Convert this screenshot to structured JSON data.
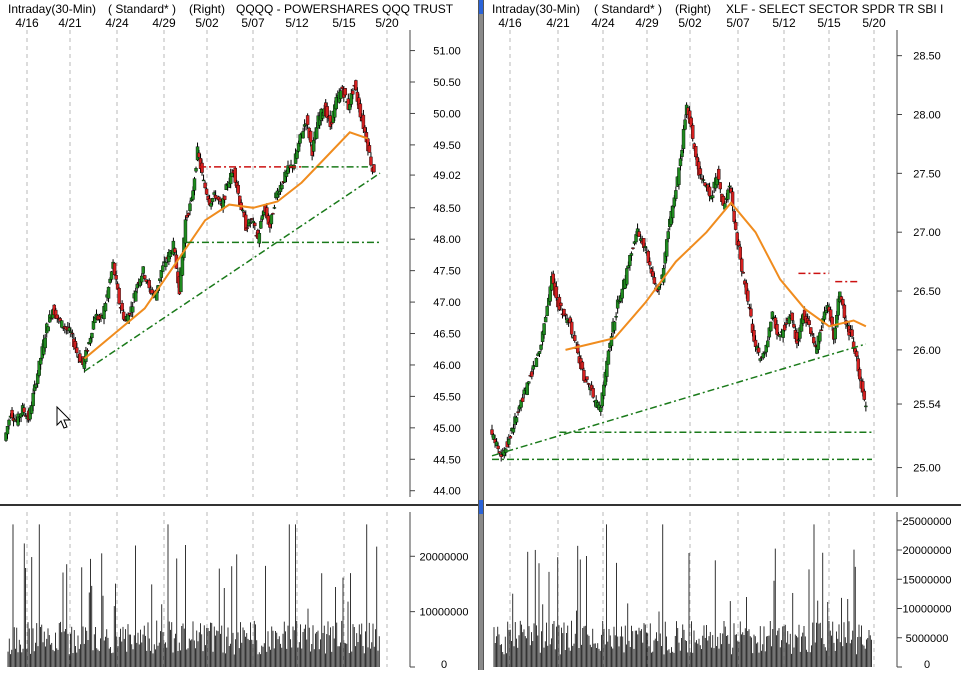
{
  "colors": {
    "up": "#1f8a1f",
    "down": "#d42020",
    "ma": "#f08c1e",
    "trend_green": "#1a7a1a",
    "trend_red": "#cc1111",
    "volume": "#000000",
    "grid": "#b8b8b8"
  },
  "chart_data": [
    {
      "type": "candlestick",
      "title": "QQQQ - POWERSHARES QQQ TRUST",
      "interval_label": "Intraday(30-Min)",
      "style_label": "( Standard* )",
      "axis_side_label": "(Right)",
      "x_ticks": [
        "4/16",
        "4/21",
        "4/24",
        "4/29",
        "5/02",
        "5/07",
        "5/12",
        "5/15",
        "5/20"
      ],
      "y_ticks": [
        "44.00",
        "44.50",
        "45.00",
        "45.50",
        "46.00",
        "46.50",
        "47.00",
        "47.50",
        "48.00",
        "48.50",
        "49.02",
        "49.50",
        "50.00",
        "50.50",
        "51.00"
      ],
      "last_price_label": "49.02",
      "ylim": [
        43.9,
        51.2
      ],
      "price_path": [
        [
          0,
          44.8
        ],
        [
          1,
          45.25
        ],
        [
          2,
          45.1
        ],
        [
          3,
          45.3
        ],
        [
          4,
          45.15
        ],
        [
          7,
          46.6
        ],
        [
          8,
          46.9
        ],
        [
          9,
          46.7
        ],
        [
          10,
          46.6
        ],
        [
          11,
          46.5
        ],
        [
          12,
          46.2
        ],
        [
          13,
          46.0
        ],
        [
          14,
          46.35
        ],
        [
          15,
          46.8
        ],
        [
          16,
          46.7
        ],
        [
          17,
          47.1
        ],
        [
          18,
          47.6
        ],
        [
          19,
          47.0
        ],
        [
          20,
          46.7
        ],
        [
          21,
          46.9
        ],
        [
          22,
          47.3
        ],
        [
          23,
          47.5
        ],
        [
          24,
          47.2
        ],
        [
          25,
          47.1
        ],
        [
          26,
          47.5
        ],
        [
          27,
          47.7
        ],
        [
          28,
          47.9
        ],
        [
          29,
          47.2
        ],
        [
          30,
          48.3
        ],
        [
          31,
          48.6
        ],
        [
          32,
          49.4
        ],
        [
          33,
          48.9
        ],
        [
          34,
          48.6
        ],
        [
          35,
          48.7
        ],
        [
          36,
          48.5
        ],
        [
          37,
          48.9
        ],
        [
          38,
          49.1
        ],
        [
          39,
          48.6
        ],
        [
          40,
          48.2
        ],
        [
          41,
          48.3
        ],
        [
          42,
          48.0
        ],
        [
          43,
          48.5
        ],
        [
          44,
          48.2
        ],
        [
          45,
          48.7
        ],
        [
          46,
          48.9
        ],
        [
          47,
          49.1
        ],
        [
          48,
          49.2
        ],
        [
          49,
          49.6
        ],
        [
          50,
          49.9
        ],
        [
          51,
          49.4
        ],
        [
          52,
          49.9
        ],
        [
          53,
          50.1
        ],
        [
          54,
          49.8
        ],
        [
          55,
          50.2
        ],
        [
          56,
          50.4
        ],
        [
          57,
          50.1
        ],
        [
          58,
          50.45
        ],
        [
          59,
          50.0
        ],
        [
          60,
          49.6
        ],
        [
          61,
          49.1
        ]
      ],
      "moving_average": [
        [
          13,
          46.1
        ],
        [
          18,
          46.5
        ],
        [
          23,
          46.9
        ],
        [
          28,
          47.6
        ],
        [
          33,
          48.3
        ],
        [
          37,
          48.55
        ],
        [
          41,
          48.5
        ],
        [
          45,
          48.6
        ],
        [
          49,
          48.9
        ],
        [
          53,
          49.3
        ],
        [
          57,
          49.7
        ],
        [
          60,
          49.6
        ]
      ],
      "trendlines": [
        {
          "color": "green",
          "style": "dashdot",
          "points": [
            [
              13,
              45.9
            ],
            [
              62,
              49.05
            ]
          ]
        },
        {
          "color": "green",
          "style": "dashdot",
          "points": [
            [
              30,
              47.95
            ],
            [
              62,
              47.95
            ]
          ]
        },
        {
          "color": "red",
          "style": "dashdot",
          "points": [
            [
              32,
              49.15
            ],
            [
              49,
              49.15
            ]
          ]
        },
        {
          "color": "green",
          "style": "dashdot",
          "points": [
            [
              49,
              49.15
            ],
            [
              60,
              49.15
            ]
          ]
        }
      ],
      "volume": {
        "y_ticks": [
          "0",
          "10000000",
          "20000000"
        ],
        "ylim": [
          0,
          28000000
        ]
      }
    },
    {
      "type": "candlestick",
      "title": "XLF - SELECT SECTOR SPDR TR SBI I",
      "interval_label": "Intraday(30-Min)",
      "style_label": "( Standard* )",
      "axis_side_label": "(Right)",
      "x_ticks": [
        "4/16",
        "4/21",
        "4/24",
        "4/29",
        "5/02",
        "5/07",
        "5/12",
        "5/15",
        "5/20"
      ],
      "y_ticks": [
        "25.00",
        "25.54",
        "26.00",
        "26.50",
        "27.00",
        "27.50",
        "28.00",
        "28.50"
      ],
      "last_price_label": "25.54",
      "ylim": [
        24.75,
        28.65
      ],
      "price_path": [
        [
          0,
          25.3
        ],
        [
          2,
          25.1
        ],
        [
          4,
          25.4
        ],
        [
          6,
          25.7
        ],
        [
          8,
          26.0
        ],
        [
          10,
          26.6
        ],
        [
          11,
          26.4
        ],
        [
          12,
          26.3
        ],
        [
          13,
          26.2
        ],
        [
          14,
          26.0
        ],
        [
          15,
          25.8
        ],
        [
          16,
          25.7
        ],
        [
          17,
          25.55
        ],
        [
          18,
          25.5
        ],
        [
          19,
          25.9
        ],
        [
          20,
          26.2
        ],
        [
          21,
          26.45
        ],
        [
          22,
          26.6
        ],
        [
          23,
          26.85
        ],
        [
          24,
          27.0
        ],
        [
          25,
          26.9
        ],
        [
          26,
          26.7
        ],
        [
          27,
          26.5
        ],
        [
          28,
          26.6
        ],
        [
          29,
          27.0
        ],
        [
          30,
          27.3
        ],
        [
          31,
          27.6
        ],
        [
          32,
          28.1
        ],
        [
          33,
          27.8
        ],
        [
          34,
          27.5
        ],
        [
          35,
          27.4
        ],
        [
          36,
          27.3
        ],
        [
          37,
          27.5
        ],
        [
          38,
          27.2
        ],
        [
          39,
          27.4
        ],
        [
          40,
          27.0
        ],
        [
          41,
          26.7
        ],
        [
          42,
          26.4
        ],
        [
          43,
          26.1
        ],
        [
          44,
          25.9
        ],
        [
          45,
          26.0
        ],
        [
          46,
          26.3
        ],
        [
          47,
          26.1
        ],
        [
          48,
          26.2
        ],
        [
          49,
          26.3
        ],
        [
          50,
          26.05
        ],
        [
          51,
          26.3
        ],
        [
          52,
          26.2
        ],
        [
          53,
          26.0
        ],
        [
          54,
          26.2
        ],
        [
          55,
          26.4
        ],
        [
          56,
          26.1
        ],
        [
          57,
          26.5
        ],
        [
          58,
          26.2
        ],
        [
          59,
          26.1
        ],
        [
          60,
          25.85
        ],
        [
          61,
          25.55
        ]
      ],
      "moving_average": [
        [
          12,
          26.0
        ],
        [
          16,
          26.05
        ],
        [
          20,
          26.1
        ],
        [
          25,
          26.4
        ],
        [
          30,
          26.75
        ],
        [
          35,
          27.0
        ],
        [
          39,
          27.25
        ],
        [
          43,
          27.0
        ],
        [
          47,
          26.6
        ],
        [
          51,
          26.35
        ],
        [
          55,
          26.2
        ],
        [
          59,
          26.25
        ],
        [
          61,
          26.2
        ]
      ],
      "trendlines": [
        {
          "color": "green",
          "style": "dashdot",
          "points": [
            [
              0,
              25.1
            ],
            [
              61,
              26.05
            ]
          ]
        },
        {
          "color": "green",
          "style": "dashdot",
          "points": [
            [
              11,
              25.3
            ],
            [
              62,
              25.3
            ]
          ]
        },
        {
          "color": "green",
          "style": "dashdot",
          "points": [
            [
              0,
              25.07
            ],
            [
              62,
              25.07
            ]
          ]
        },
        {
          "color": "red",
          "style": "dashdot",
          "points": [
            [
              50,
              26.65
            ],
            [
              55,
              26.65
            ]
          ]
        },
        {
          "color": "red",
          "style": "dashdot",
          "points": [
            [
              56,
              26.58
            ],
            [
              60,
              26.58
            ]
          ]
        }
      ],
      "volume": {
        "y_ticks": [
          "0",
          "5000000",
          "10000000",
          "15000000",
          "20000000",
          "25000000"
        ],
        "ylim": [
          0,
          26500000
        ]
      }
    }
  ]
}
